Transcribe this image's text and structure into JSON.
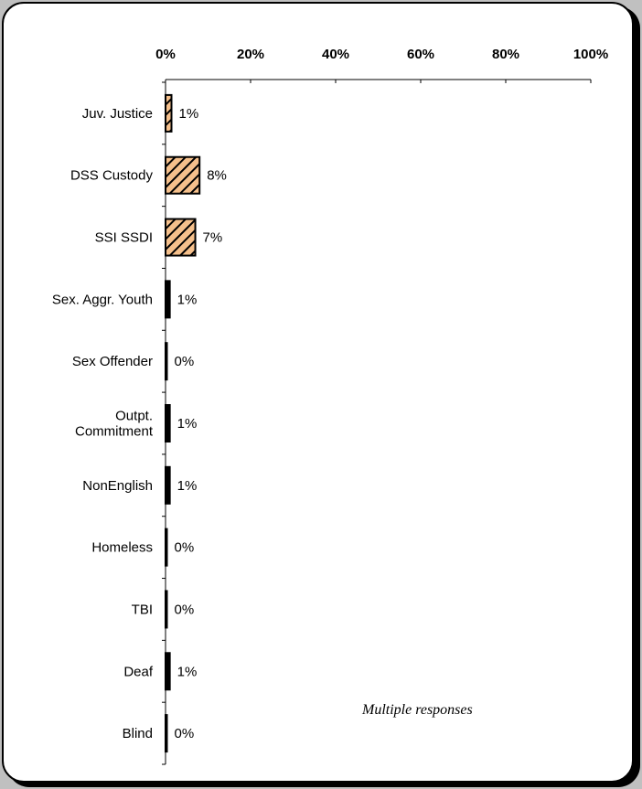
{
  "chart_data": {
    "type": "bar",
    "orientation": "horizontal",
    "categories": [
      "Juv. Justice",
      "DSS Custody",
      "SSI SSDI",
      "Sex. Aggr. Youth",
      "Sex Offender",
      "Outpt. Commitment",
      "NonEnglish",
      "Homeless",
      "TBI",
      "Deaf",
      "Blind"
    ],
    "category_lines": [
      [
        "Juv. Justice"
      ],
      [
        "DSS Custody"
      ],
      [
        "SSI SSDI"
      ],
      [
        "Sex. Aggr. Youth"
      ],
      [
        "Sex Offender"
      ],
      [
        "Outpt.",
        "Commitment"
      ],
      [
        "NonEnglish"
      ],
      [
        "Homeless"
      ],
      [
        "TBI"
      ],
      [
        "Deaf"
      ],
      [
        "Blind"
      ]
    ],
    "values": [
      1.4,
      8,
      7,
      1,
      0.3,
      1,
      1,
      0.3,
      0.3,
      1,
      0.2
    ],
    "value_labels": [
      "1%",
      "8%",
      "7%",
      "1%",
      "0%",
      "1%",
      "1%",
      "0%",
      "0%",
      "1%",
      "0%"
    ],
    "hatched": [
      true,
      true,
      true,
      false,
      false,
      false,
      false,
      false,
      false,
      false,
      false
    ],
    "xlim": [
      0,
      100
    ],
    "xticks": [
      0,
      20,
      40,
      60,
      80,
      100
    ],
    "xtick_labels": [
      "0%",
      "20%",
      "40%",
      "60%",
      "80%",
      "100%"
    ],
    "x_axis_position": "top",
    "grid": false,
    "legend": "none",
    "title": "",
    "xlabel": "",
    "ylabel": "",
    "annotation": "Multiple responses",
    "colors": {
      "hatch_fill": "#f5c08c",
      "hatch_stroke": "#000000",
      "bar_stroke": "#000000",
      "background": "#ffffff",
      "page_background": "#c0c0c0"
    }
  }
}
